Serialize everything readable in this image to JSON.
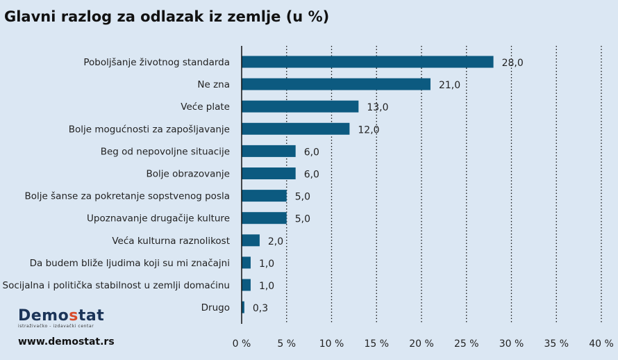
{
  "header": {
    "title": "Glavni razlog za odlazak iz zemlje (u %)"
  },
  "branding": {
    "logo_text_main": "Demo",
    "logo_text_accent": "s",
    "logo_text_end": "tat",
    "logo_tagline": "istraživačko - izdavački centar",
    "website": "www.demostat.rs"
  },
  "chart_data": {
    "type": "bar",
    "orientation": "horizontal",
    "title": "Glavni razlog za odlazak iz zemlje (u %)",
    "categories": [
      "Poboljšanje životnog standarda",
      "Ne zna",
      "Veće plate",
      "Bolje mogućnosti za zapošljavanje",
      "Beg od nepovoljne situacije",
      "Bolje obrazovanje",
      "Bolje šanse za pokretanje sopstvenog posla",
      "Upoznavanje drugačije kulture",
      "Veća kulturna raznolikost",
      "Da budem bliže ljudima koji su mi značajni",
      "Socijalna i politička stabilnost u zemlji domaćinu",
      "Drugo"
    ],
    "values": [
      28.0,
      21.0,
      13.0,
      12.0,
      6.0,
      6.0,
      5.0,
      5.0,
      2.0,
      1.0,
      1.0,
      0.3
    ],
    "value_labels": [
      "28,0",
      "21,0",
      "13,0",
      "12,0",
      "6,0",
      "6,0",
      "5,0",
      "5,0",
      "2,0",
      "1,0",
      "1,0",
      "0,3"
    ],
    "xticks": [
      0,
      5,
      10,
      15,
      20,
      25,
      30,
      35,
      40
    ],
    "xtick_labels": [
      "0 %",
      "5 %",
      "10 %",
      "15 %",
      "20 %",
      "25 %",
      "30 %",
      "35 %",
      "40 %"
    ],
    "xlim": [
      0,
      40
    ],
    "xlabel": "",
    "ylabel": "",
    "grid": "vertical dotted",
    "legend": "none",
    "bar_color": "#0c5a80"
  }
}
